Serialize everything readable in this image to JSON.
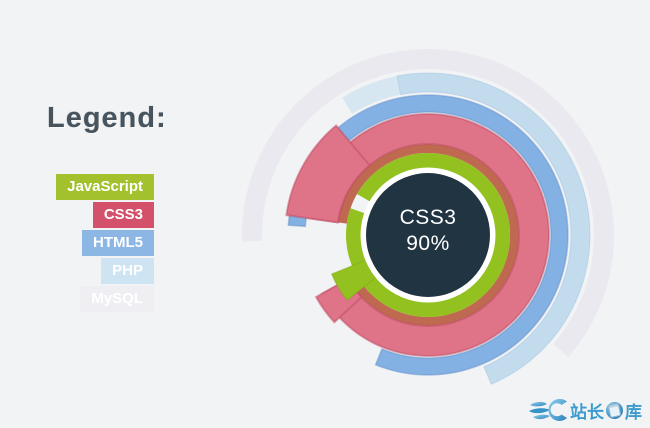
{
  "page": {
    "background": "#f2f3f5"
  },
  "legend": {
    "title": "Legend:",
    "items": [
      {
        "label": "JavaScript",
        "color": "#a2c12c"
      },
      {
        "label": "CSS3",
        "color": "#d4516b"
      },
      {
        "label": "HTML5",
        "color": "#8cb6e3"
      },
      {
        "label": "PHP",
        "color": "#cfe4f2"
      },
      {
        "label": "MySQL",
        "color": "#efeff3"
      }
    ]
  },
  "chart_data": {
    "type": "radial-progress-rings",
    "center": {
      "x": 428,
      "y": 235
    },
    "center_label": {
      "skill": "CSS3",
      "percent": "90%"
    },
    "series": [
      {
        "name": "JavaScript",
        "color": "#93c11f",
        "ring": "innermost",
        "sweep_deg": 349
      },
      {
        "name": "CSS3",
        "color": "#df7388",
        "ring": "second",
        "sweep_deg": 323,
        "percent_label": "90%"
      },
      {
        "name": "HTML5",
        "color": "#84b1e3",
        "ring": "third",
        "sweep_deg": 288
      },
      {
        "name": "PHP",
        "color": "#c2dcee",
        "ring": "fourth",
        "sweep_deg": 189
      },
      {
        "name": "MySQL",
        "color": "#e9e9ef",
        "ring": "outermost",
        "sweep_deg": 223
      }
    ],
    "segments": [
      {
        "name": "mysql-arc",
        "color": "#e9e9ef",
        "r1": 166,
        "r2": 186,
        "a1": 268,
        "a2": 131
      },
      {
        "name": "php-arc-head",
        "color": "#d7e7f2",
        "r1": 143,
        "r2": 162,
        "a1": 328,
        "a2": 349
      },
      {
        "name": "php-arc",
        "color": "#c2dcee",
        "r1": 143,
        "r2": 162,
        "a1": 349,
        "a2": 157,
        "stroke": "rgba(150,185,215,0.4)",
        "stroke_width": 1
      },
      {
        "name": "html5-arc",
        "color": "#84b1e3",
        "r1": 123,
        "r2": 140,
        "a1": 274,
        "a2": 202,
        "stroke": "rgba(95,140,200,0.45)",
        "stroke_width": 1.5
      },
      {
        "name": "css3-arc-shadow",
        "color": "#bf6950",
        "r1": 82,
        "r2": 91,
        "a1": 278,
        "a2": 241
      },
      {
        "name": "css3-arc",
        "color": "#df7388",
        "r1": 91,
        "r2": 121,
        "a1": 278,
        "a2": 241,
        "stroke": "rgba(190,75,100,0.5)",
        "stroke_width": 2
      },
      {
        "name": "css3-arc-head",
        "color": "#df7388",
        "r1": 91,
        "r2": 143,
        "a1": 278,
        "a2": 320,
        "stroke": "rgba(190,75,100,0.5)",
        "stroke_width": 2
      },
      {
        "name": "css3-arc-tail",
        "color": "#df7388",
        "r1": 91,
        "r2": 128,
        "a1": 227,
        "a2": 241,
        "stroke": "rgba(190,75,100,0.5)",
        "stroke_width": 2
      },
      {
        "name": "javascript-ring",
        "color": "#93c11f",
        "r1": 67,
        "r2": 82,
        "a1": 300,
        "a2": 289
      },
      {
        "name": "javascript-wedge",
        "color": "#93c11f",
        "r1": 67,
        "r2": 104,
        "a1": 231,
        "a2": 248,
        "stroke": "rgba(115,155,20,0.35)",
        "stroke_width": 1
      }
    ],
    "circles": [
      {
        "name": "center-white-ring",
        "r": 67.5,
        "color": "#ffffff"
      },
      {
        "name": "center-circle",
        "r": 62,
        "color": "#203442"
      }
    ]
  },
  "watermark": {
    "text": "站长图库",
    "text_left": "站长",
    "text_right": "库",
    "color": "#3d9bcd"
  }
}
